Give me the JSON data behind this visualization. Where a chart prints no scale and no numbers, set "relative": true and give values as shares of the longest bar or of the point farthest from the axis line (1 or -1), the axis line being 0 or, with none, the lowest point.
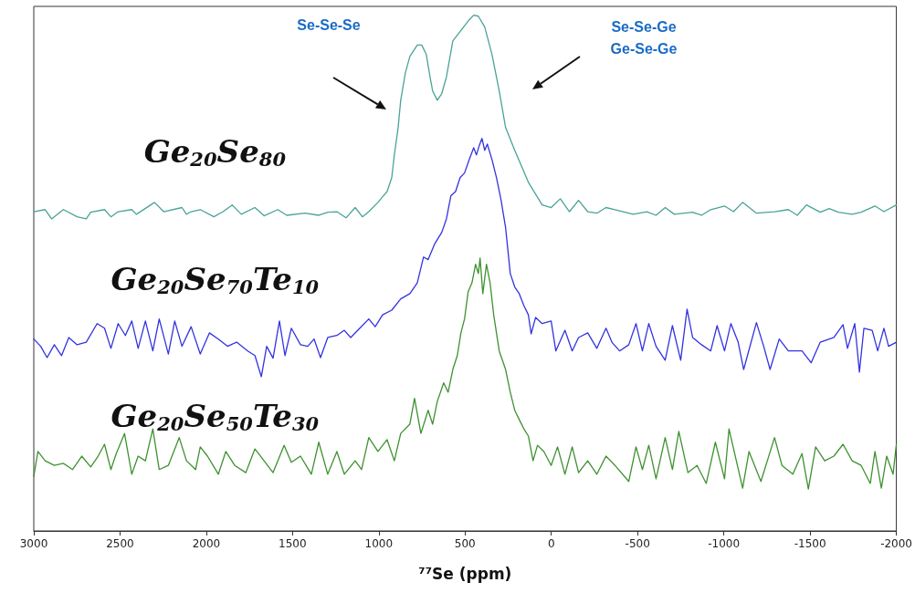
{
  "chart_data": {
    "type": "line",
    "relative": true,
    "xlabel": "⁷⁷Se (ppm)",
    "xlim": [
      3000,
      -2000
    ],
    "xticks": [
      3000,
      2500,
      2000,
      1500,
      1000,
      500,
      0,
      -500,
      -1000,
      -1500,
      -2000
    ],
    "grid": false,
    "legend": false,
    "marker": "none",
    "annotations": [
      "Se-Se-Se",
      "Se-Se-Ge\nGe-Se-Ge"
    ],
    "series": [
      {
        "name": "Ge$_{20}$Se$_{80}$",
        "color": "#4aa397",
        "x": [
          3000,
          2934,
          2897,
          2828,
          2749,
          2696,
          2670,
          2590,
          2553,
          2511,
          2432,
          2405,
          2300,
          2247,
          2141,
          2115,
          2088,
          2035,
          1956,
          1903,
          1850,
          1797,
          1718,
          1665,
          1586,
          1533,
          1428,
          1348,
          1295,
          1243,
          1190,
          1137,
          1095,
          1058,
          1005,
          978,
          952,
          925,
          910,
          888,
          873,
          846,
          820,
          777,
          751,
          725,
          703,
          688,
          661,
          635,
          608,
          571,
          529,
          476,
          450,
          423,
          386,
          344,
          302,
          265,
          212,
          133,
          53,
          1,
          -52,
          -105,
          -158,
          -211,
          -264,
          -317,
          -369,
          -475,
          -554,
          -607,
          -660,
          -713,
          -819,
          -871,
          -924,
          -1004,
          -1056,
          -1109,
          -1189,
          -1294,
          -1374,
          -1426,
          -1479,
          -1559,
          -1611,
          -1664,
          -1744,
          -1796,
          -1876,
          -1928,
          -2000
        ],
        "values": [
          0.619,
          0.623,
          0.605,
          0.623,
          0.609,
          0.605,
          0.618,
          0.623,
          0.609,
          0.619,
          0.623,
          0.614,
          0.637,
          0.619,
          0.627,
          0.614,
          0.619,
          0.623,
          0.609,
          0.619,
          0.632,
          0.614,
          0.627,
          0.611,
          0.623,
          0.612,
          0.616,
          0.612,
          0.618,
          0.619,
          0.607,
          0.627,
          0.609,
          0.619,
          0.637,
          0.648,
          0.658,
          0.685,
          0.729,
          0.782,
          0.835,
          0.888,
          0.92,
          0.942,
          0.942,
          0.924,
          0.88,
          0.853,
          0.835,
          0.848,
          0.88,
          0.95,
          0.968,
          0.991,
          1,
          0.998,
          0.977,
          0.924,
          0.853,
          0.782,
          0.738,
          0.676,
          0.632,
          0.627,
          0.644,
          0.619,
          0.641,
          0.619,
          0.616,
          0.627,
          0.623,
          0.614,
          0.619,
          0.612,
          0.627,
          0.614,
          0.618,
          0.612,
          0.623,
          0.63,
          0.619,
          0.637,
          0.616,
          0.619,
          0.623,
          0.612,
          0.632,
          0.618,
          0.625,
          0.618,
          0.614,
          0.618,
          0.63,
          0.619,
          0.632
        ]
      },
      {
        "name": "Ge$_{20}$Se$_{70}$Te$_{10}$",
        "color": "#3333e0",
        "x": [
          3000,
          2960,
          2923,
          2881,
          2839,
          2797,
          2749,
          2696,
          2633,
          2590,
          2553,
          2511,
          2469,
          2432,
          2395,
          2353,
          2310,
          2273,
          2220,
          2183,
          2141,
          2088,
          2035,
          1982,
          1930,
          1877,
          1824,
          1760,
          1718,
          1681,
          1650,
          1613,
          1576,
          1544,
          1507,
          1454,
          1412,
          1375,
          1338,
          1296,
          1243,
          1200,
          1163,
          1110,
          1058,
          1021,
          978,
          925,
          873,
          820,
          777,
          741,
          714,
          677,
          635,
          608,
          582,
          555,
          529,
          503,
          476,
          450,
          434,
          418,
          402,
          386,
          371,
          344,
          318,
          291,
          265,
          238,
          212,
          186,
          159,
          133,
          117,
          91,
          53,
          1,
          -26,
          -79,
          -121,
          -158,
          -211,
          -264,
          -317,
          -353,
          -396,
          -449,
          -491,
          -528,
          -565,
          -607,
          -660,
          -702,
          -750,
          -787,
          -819,
          -871,
          -924,
          -961,
          -1004,
          -1041,
          -1083,
          -1115,
          -1189,
          -1231,
          -1268,
          -1321,
          -1374,
          -1453,
          -1506,
          -1559,
          -1638,
          -1691,
          -1717,
          -1759,
          -1786,
          -1812,
          -1860,
          -1892,
          -1928,
          -1955,
          -2000
        ],
        "values": [
          0.372,
          0.358,
          0.336,
          0.361,
          0.34,
          0.375,
          0.361,
          0.366,
          0.402,
          0.393,
          0.354,
          0.402,
          0.379,
          0.407,
          0.354,
          0.407,
          0.349,
          0.411,
          0.343,
          0.407,
          0.358,
          0.396,
          0.343,
          0.384,
          0.372,
          0.358,
          0.366,
          0.349,
          0.34,
          0.299,
          0.358,
          0.335,
          0.407,
          0.34,
          0.393,
          0.361,
          0.358,
          0.372,
          0.336,
          0.375,
          0.379,
          0.389,
          0.375,
          0.393,
          0.411,
          0.396,
          0.419,
          0.428,
          0.45,
          0.46,
          0.481,
          0.531,
          0.526,
          0.556,
          0.579,
          0.605,
          0.65,
          0.658,
          0.685,
          0.694,
          0.72,
          0.743,
          0.729,
          0.747,
          0.761,
          0.738,
          0.75,
          0.72,
          0.685,
          0.641,
          0.588,
          0.499,
          0.473,
          0.46,
          0.437,
          0.419,
          0.382,
          0.414,
          0.402,
          0.407,
          0.349,
          0.389,
          0.349,
          0.375,
          0.384,
          0.354,
          0.393,
          0.365,
          0.349,
          0.361,
          0.402,
          0.349,
          0.402,
          0.358,
          0.331,
          0.398,
          0.331,
          0.43,
          0.375,
          0.361,
          0.349,
          0.398,
          0.349,
          0.402,
          0.366,
          0.313,
          0.404,
          0.358,
          0.313,
          0.372,
          0.349,
          0.349,
          0.326,
          0.366,
          0.375,
          0.4,
          0.354,
          0.402,
          0.308,
          0.393,
          0.389,
          0.349,
          0.393,
          0.358,
          0.366
        ]
      },
      {
        "name": "Ge$_{20}$Se$_{50}$Te$_{30}$",
        "color": "#3e9130",
        "x": [
          3000,
          2976,
          2934,
          2881,
          2828,
          2775,
          2722,
          2670,
          2627,
          2590,
          2553,
          2522,
          2474,
          2432,
          2395,
          2353,
          2310,
          2273,
          2220,
          2157,
          2115,
          2062,
          2035,
          1993,
          1930,
          1887,
          1835,
          1771,
          1718,
          1665,
          1613,
          1549,
          1507,
          1454,
          1391,
          1348,
          1296,
          1243,
          1200,
          1137,
          1100,
          1058,
          1005,
          952,
          910,
          873,
          820,
          793,
          756,
          714,
          688,
          661,
          624,
          598,
          571,
          545,
          524,
          503,
          482,
          460,
          439,
          423,
          413,
          397,
          376,
          355,
          334,
          302,
          265,
          238,
          212,
          186,
          159,
          133,
          106,
          80,
          43,
          1,
          -36,
          -79,
          -121,
          -158,
          -211,
          -264,
          -317,
          -369,
          -449,
          -491,
          -528,
          -565,
          -607,
          -660,
          -702,
          -739,
          -792,
          -845,
          -898,
          -951,
          -1004,
          -1030,
          -1109,
          -1146,
          -1215,
          -1294,
          -1337,
          -1400,
          -1453,
          -1490,
          -1532,
          -1585,
          -1638,
          -1691,
          -1744,
          -1796,
          -1849,
          -1876,
          -1913,
          -1944,
          -1981,
          -2000
        ],
        "values": [
          0.106,
          0.154,
          0.136,
          0.127,
          0.131,
          0.119,
          0.145,
          0.124,
          0.145,
          0.168,
          0.119,
          0.15,
          0.189,
          0.11,
          0.145,
          0.136,
          0.198,
          0.119,
          0.127,
          0.181,
          0.136,
          0.119,
          0.163,
          0.145,
          0.11,
          0.154,
          0.127,
          0.113,
          0.159,
          0.136,
          0.113,
          0.166,
          0.133,
          0.145,
          0.11,
          0.172,
          0.11,
          0.154,
          0.11,
          0.136,
          0.119,
          0.181,
          0.154,
          0.177,
          0.136,
          0.189,
          0.207,
          0.257,
          0.189,
          0.234,
          0.207,
          0.251,
          0.287,
          0.269,
          0.313,
          0.34,
          0.384,
          0.411,
          0.464,
          0.481,
          0.517,
          0.499,
          0.529,
          0.46,
          0.517,
          0.481,
          0.419,
          0.349,
          0.313,
          0.269,
          0.234,
          0.216,
          0.198,
          0.184,
          0.136,
          0.166,
          0.154,
          0.127,
          0.163,
          0.11,
          0.163,
          0.113,
          0.136,
          0.11,
          0.145,
          0.127,
          0.096,
          0.163,
          0.119,
          0.166,
          0.101,
          0.181,
          0.119,
          0.193,
          0.113,
          0.127,
          0.092,
          0.172,
          0.101,
          0.198,
          0.083,
          0.154,
          0.096,
          0.181,
          0.127,
          0.11,
          0.15,
          0.081,
          0.163,
          0.136,
          0.145,
          0.168,
          0.136,
          0.127,
          0.092,
          0.154,
          0.083,
          0.145,
          0.11,
          0.168
        ]
      }
    ]
  }
}
